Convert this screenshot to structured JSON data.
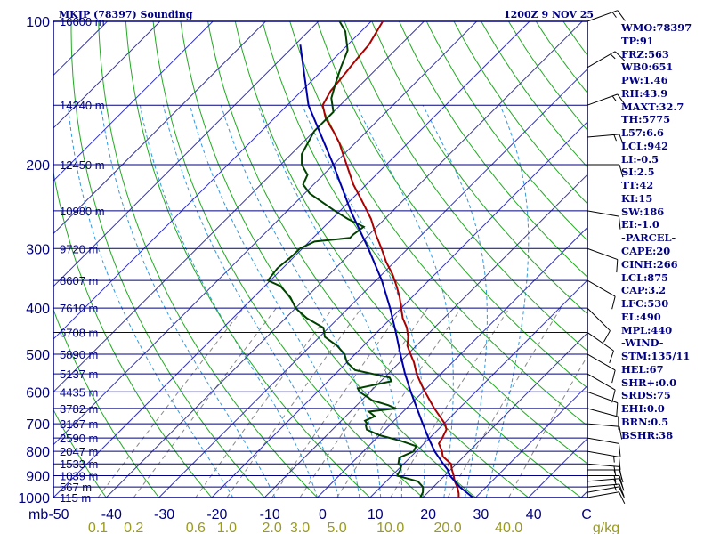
{
  "header": {
    "station": "MKJP (78397) Sounding",
    "time": "1200Z  9 NOV 25"
  },
  "indices": [
    "WMO:78397",
    "TP:91",
    "FRZ:563",
    "WB0:651",
    "PW:1.46",
    "RH:43.9",
    "MAXT:32.7",
    "TH:5775",
    "L57:6.6",
    "LCL:942",
    "LI:-0.5",
    "SI:2.5",
    "TT:42",
    "KI:15",
    "SW:186",
    "EI:-1.0",
    "-PARCEL-",
    "CAPE:20",
    "CINH:266",
    "LCL:875",
    "CAP:3.2",
    "LFC:530",
    "EL:490",
    "MPL:440",
    "-WIND-",
    "STM:135/11",
    "HEL:67",
    "SHR+:0.0",
    "SRDS:75",
    "EHI:0.0",
    "BRN:0.5",
    "BSHR:38"
  ],
  "colors": {
    "frame": "#000080",
    "isobar": "#000080",
    "isotherm": "#3333bb",
    "dry_adiabat": "#22aa22",
    "moist_adiabat": "#3399dd",
    "mixing_ratio": "#888888",
    "temperature": "#aa0000",
    "dewpoint": "#004000",
    "parcel": "#0000aa",
    "wind": "#000000"
  },
  "chart_data": {
    "type": "line",
    "diagram": "skew-T log-P",
    "xlim": [
      -50,
      50
    ],
    "ylim": [
      1000,
      100
    ],
    "y_scale": "log",
    "x_unit_label": "mb",
    "mixing_ratio_unit": "g/kg",
    "isobar_ticks": [
      "100",
      "200",
      "300",
      "400",
      "500",
      "600",
      "700",
      "800",
      "900",
      "1000"
    ],
    "temperature_ticks": [
      "-50",
      "-40",
      "-30",
      "-20",
      "-10",
      "0",
      "10",
      "20",
      "30",
      "40",
      "C"
    ],
    "mixing_ratio_ticks": [
      {
        "value": 0.1,
        "label": "0.1"
      },
      {
        "value": 0.2,
        "label": "0.2"
      },
      {
        "value": 0.6,
        "label": "0.6"
      },
      {
        "value": 1.0,
        "label": "1.0"
      },
      {
        "value": 2.0,
        "label": "2.0"
      },
      {
        "value": 3.0,
        "label": "3.0"
      },
      {
        "value": 5.0,
        "label": "5.0"
      },
      {
        "value": 10.0,
        "label": "10.0"
      },
      {
        "value": 20.0,
        "label": "20.0"
      },
      {
        "value": 40.0,
        "label": "40.0"
      }
    ],
    "height_labels": [
      {
        "p": 100,
        "label": "16600 m"
      },
      {
        "p": 150,
        "label": "14240 m"
      },
      {
        "p": 200,
        "label": "12450 m"
      },
      {
        "p": 250,
        "label": "10980 m"
      },
      {
        "p": 300,
        "label": "9720 m"
      },
      {
        "p": 350,
        "label": "8607 m"
      },
      {
        "p": 400,
        "label": "7610 m"
      },
      {
        "p": 450,
        "label": "6708 m"
      },
      {
        "p": 500,
        "label": "5890 m"
      },
      {
        "p": 550,
        "label": "5137 m"
      },
      {
        "p": 600,
        "label": "4435 m"
      },
      {
        "p": 650,
        "label": "3782 m"
      },
      {
        "p": 700,
        "label": "3167 m"
      },
      {
        "p": 750,
        "label": "2590 m"
      },
      {
        "p": 800,
        "label": "2047 m"
      },
      {
        "p": 850,
        "label": "1533 m"
      },
      {
        "p": 900,
        "label": "1039 m"
      },
      {
        "p": 950,
        "label": "567 m"
      },
      {
        "p": 1000,
        "label": "115 m"
      }
    ],
    "series": [
      {
        "key": "temperature",
        "points": [
          [
            1000,
            26.8
          ],
          [
            980,
            26.0
          ],
          [
            950,
            24.5
          ],
          [
            925,
            23.0
          ],
          [
            900,
            21.7
          ],
          [
            870,
            20.0
          ],
          [
            850,
            19.0
          ],
          [
            820,
            16.0
          ],
          [
            800,
            14.9
          ],
          [
            770,
            12.8
          ],
          [
            750,
            12.4
          ],
          [
            720,
            11.6
          ],
          [
            700,
            10.2
          ],
          [
            680,
            8.3
          ],
          [
            650,
            5.3
          ],
          [
            620,
            2.4
          ],
          [
            600,
            0.4
          ],
          [
            580,
            -1.6
          ],
          [
            550,
            -4.6
          ],
          [
            520,
            -7.3
          ],
          [
            500,
            -9.5
          ],
          [
            480,
            -11.7
          ],
          [
            460,
            -13.2
          ],
          [
            440,
            -15.2
          ],
          [
            420,
            -17.8
          ],
          [
            400,
            -20.0
          ],
          [
            380,
            -22.3
          ],
          [
            360,
            -25.0
          ],
          [
            340,
            -28.0
          ],
          [
            320,
            -31.6
          ],
          [
            300,
            -35.0
          ],
          [
            280,
            -38.8
          ],
          [
            260,
            -42.6
          ],
          [
            240,
            -47.3
          ],
          [
            220,
            -52.5
          ],
          [
            200,
            -57.5
          ],
          [
            190,
            -60.2
          ],
          [
            180,
            -63.0
          ],
          [
            170,
            -66.4
          ],
          [
            160,
            -70.2
          ],
          [
            150,
            -73.3
          ],
          [
            140,
            -74.5
          ],
          [
            130,
            -75.0
          ],
          [
            120,
            -75.6
          ],
          [
            112,
            -76.0
          ],
          [
            100,
            -77.8
          ]
        ]
      },
      {
        "key": "dewpoint",
        "points": [
          [
            1000,
            19.5
          ],
          [
            975,
            19.0
          ],
          [
            950,
            18.0
          ],
          [
            925,
            16.0
          ],
          [
            900,
            11.0
          ],
          [
            875,
            10.5
          ],
          [
            860,
            10.0
          ],
          [
            850,
            9.0
          ],
          [
            825,
            8.0
          ],
          [
            800,
            9.5
          ],
          [
            780,
            9.0
          ],
          [
            760,
            5.0
          ],
          [
            740,
            0.0
          ],
          [
            720,
            -3.5
          ],
          [
            705,
            -4.5
          ],
          [
            700,
            -4.5
          ],
          [
            690,
            -5.5
          ],
          [
            675,
            -4.5
          ],
          [
            660,
            -6.5
          ],
          [
            650,
            -2.0
          ],
          [
            640,
            -4.0
          ],
          [
            625,
            -8.0
          ],
          [
            600,
            -12.0
          ],
          [
            590,
            -13.0
          ],
          [
            570,
            -8.0
          ],
          [
            560,
            -9.0
          ],
          [
            540,
            -17.0
          ],
          [
            520,
            -20.0
          ],
          [
            500,
            -22.0
          ],
          [
            480,
            -25.0
          ],
          [
            460,
            -29.0
          ],
          [
            440,
            -31.0
          ],
          [
            420,
            -36.0
          ],
          [
            400,
            -40.0
          ],
          [
            380,
            -43.0
          ],
          [
            360,
            -47.0
          ],
          [
            350,
            -50.5
          ],
          [
            330,
            -51.0
          ],
          [
            310,
            -50.5
          ],
          [
            300,
            -50.5
          ],
          [
            290,
            -49.0
          ],
          [
            285,
            -43.0
          ],
          [
            280,
            -43.0
          ],
          [
            270,
            -42.5
          ],
          [
            260,
            -47.0
          ],
          [
            250,
            -51.0
          ],
          [
            230,
            -59.0
          ],
          [
            220,
            -62.0
          ],
          [
            210,
            -63.0
          ],
          [
            200,
            -66.0
          ],
          [
            190,
            -68.0
          ],
          [
            170,
            -70.0
          ],
          [
            155,
            -70.0
          ],
          [
            145,
            -73.0
          ],
          [
            135,
            -75.0
          ],
          [
            125,
            -77.0
          ],
          [
            115,
            -79.0
          ],
          [
            105,
            -83.0
          ],
          [
            100,
            -86.0
          ]
        ]
      },
      {
        "key": "parcel",
        "points": [
          [
            1000,
            29.5
          ],
          [
            950,
            25.0
          ],
          [
            900,
            21.0
          ],
          [
            875,
            19.5
          ],
          [
            850,
            17.5
          ],
          [
            800,
            13.5
          ],
          [
            750,
            9.8
          ],
          [
            700,
            6.0
          ],
          [
            650,
            2.0
          ],
          [
            600,
            -2.3
          ],
          [
            550,
            -6.8
          ],
          [
            500,
            -11.4
          ],
          [
            450,
            -16.4
          ],
          [
            400,
            -22.1
          ],
          [
            350,
            -28.9
          ],
          [
            300,
            -37.5
          ],
          [
            250,
            -48.0
          ],
          [
            200,
            -60.0
          ],
          [
            150,
            -76.0
          ],
          [
            112,
            -89.0
          ]
        ]
      }
    ],
    "winds": [
      {
        "p": 1000,
        "dir": 80,
        "kt": 10
      },
      {
        "p": 975,
        "dir": 80,
        "kt": 10
      },
      {
        "p": 950,
        "dir": 85,
        "kt": 15
      },
      {
        "p": 925,
        "dir": 85,
        "kt": 15
      },
      {
        "p": 900,
        "dir": 90,
        "kt": 15
      },
      {
        "p": 875,
        "dir": 90,
        "kt": 15
      },
      {
        "p": 850,
        "dir": 95,
        "kt": 15
      },
      {
        "p": 800,
        "dir": 100,
        "kt": 15
      },
      {
        "p": 750,
        "dir": 100,
        "kt": 10
      },
      {
        "p": 700,
        "dir": 95,
        "kt": 10
      },
      {
        "p": 650,
        "dir": 105,
        "kt": 10
      },
      {
        "p": 600,
        "dir": 110,
        "kt": 10
      },
      {
        "p": 550,
        "dir": 120,
        "kt": 10
      },
      {
        "p": 500,
        "dir": 120,
        "kt": 10
      },
      {
        "p": 450,
        "dir": 125,
        "kt": 10
      },
      {
        "p": 400,
        "dir": 135,
        "kt": 10
      },
      {
        "p": 350,
        "dir": 120,
        "kt": 10
      },
      {
        "p": 300,
        "dir": 110,
        "kt": 10
      },
      {
        "p": 250,
        "dir": 100,
        "kt": 10
      },
      {
        "p": 200,
        "dir": 90,
        "kt": 10
      },
      {
        "p": 175,
        "dir": 85,
        "kt": 15
      },
      {
        "p": 150,
        "dir": 70,
        "kt": 15
      },
      {
        "p": 125,
        "dir": 60,
        "kt": 15
      },
      {
        "p": 100,
        "dir": 70,
        "kt": 15
      }
    ]
  }
}
